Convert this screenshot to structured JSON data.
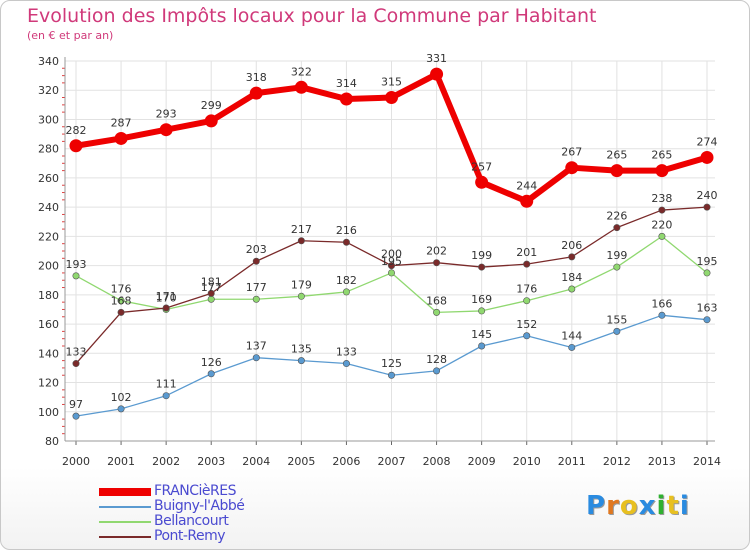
{
  "title": "Evolution des Impôts locaux pour la Commune par Habitant",
  "subtitle": "(en € et par an)",
  "logo": {
    "letters": [
      "P",
      "r",
      "o",
      "x",
      "i",
      "t",
      "i"
    ],
    "colors": [
      "#2a8be0",
      "#e07820",
      "#e8c020",
      "#2a8be0",
      "#30b030",
      "#e8c020",
      "#2a8be0"
    ]
  },
  "chart_data": {
    "type": "line",
    "title": "Evolution des Impôts locaux pour la Commune par Habitant",
    "subtitle": "(en € et par an)",
    "xlabel": "",
    "ylabel": "",
    "categories": [
      "2000",
      "2001",
      "2002",
      "2003",
      "2004",
      "2005",
      "2006",
      "2007",
      "2008",
      "2009",
      "2010",
      "2011",
      "2012",
      "2013",
      "2014"
    ],
    "ylim": [
      80,
      340
    ],
    "yticks": [
      80,
      100,
      120,
      140,
      160,
      180,
      200,
      220,
      240,
      260,
      280,
      300,
      320,
      340
    ],
    "grid": true,
    "legend_position": "bottom-left",
    "series": [
      {
        "name": "FRANCièRES",
        "color": "#ee0000",
        "values": [
          282,
          287,
          293,
          299,
          318,
          322,
          314,
          315,
          331,
          257,
          244,
          267,
          265,
          265,
          274
        ]
      },
      {
        "name": "Buigny-l'Abbé",
        "color": "#5a9ad0",
        "values": [
          97,
          102,
          111,
          126,
          137,
          135,
          133,
          125,
          128,
          145,
          152,
          144,
          155,
          166,
          163
        ]
      },
      {
        "name": "Bellancourt",
        "color": "#90d870",
        "values": [
          193,
          176,
          170,
          177,
          177,
          179,
          182,
          195,
          168,
          169,
          176,
          184,
          199,
          220,
          195
        ]
      },
      {
        "name": "Pont-Remy",
        "color": "#7a2a2a",
        "values": [
          133,
          168,
          171,
          181,
          203,
          217,
          216,
          200,
          202,
          199,
          201,
          206,
          226,
          238,
          240
        ]
      }
    ]
  }
}
